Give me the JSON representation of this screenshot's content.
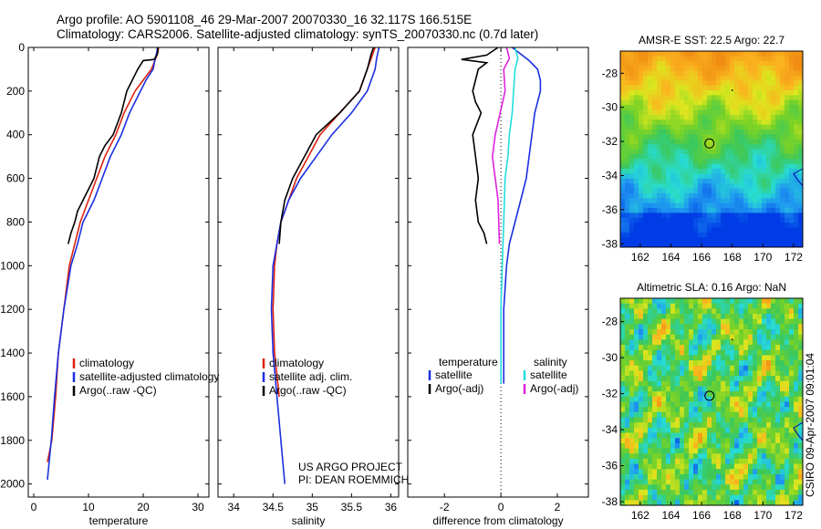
{
  "header": {
    "line1": "Argo profile: AO 5901108_46 29-Mar-2007 20070330_16 32.117S 166.515E",
    "line2": "Climatology: CARS2006. Satellite-adjusted climatology: synTS_20070330.nc (0.7d later)"
  },
  "side_text": "CSIRO 09-Apr-2007 09:01:04",
  "colors": {
    "red": "#dd2211",
    "blue": "#1a2fe0",
    "black": "#000000",
    "cyan": "#22dddd",
    "magenta": "#dd22dd"
  },
  "chart_data": [
    {
      "type": "line",
      "xlabel": "temperature",
      "xlim": [
        -1,
        32
      ],
      "ylim": [
        2060,
        0
      ],
      "xticks": [
        0,
        10,
        20,
        30
      ],
      "yticks": [
        0,
        200,
        400,
        600,
        800,
        1000,
        1200,
        1400,
        1600,
        1800,
        2000
      ],
      "legend": [
        "climatology",
        "satellite-adjusted climatology",
        "Argo(..raw -QC)"
      ],
      "series": [
        {
          "name": "climatology",
          "color": "red",
          "points": [
            [
              22.8,
              0
            ],
            [
              22.7,
              20
            ],
            [
              22.3,
              50
            ],
            [
              21.5,
              100
            ],
            [
              20,
              150
            ],
            [
              18.5,
              200
            ],
            [
              16.5,
              300
            ],
            [
              15,
              400
            ],
            [
              13,
              500
            ],
            [
              11.5,
              600
            ],
            [
              10,
              700
            ],
            [
              8.5,
              800
            ],
            [
              7.5,
              900
            ],
            [
              6.5,
              1000
            ],
            [
              5.5,
              1200
            ],
            [
              4.5,
              1400
            ],
            [
              4,
              1600
            ],
            [
              3.3,
              1800
            ],
            [
              2.5,
              1900
            ]
          ]
        },
        {
          "name": "satellite-adjusted climatology",
          "color": "blue",
          "points": [
            [
              22.6,
              0
            ],
            [
              22.5,
              20
            ],
            [
              22.2,
              50
            ],
            [
              21.8,
              100
            ],
            [
              20.5,
              150
            ],
            [
              19.5,
              200
            ],
            [
              17.5,
              300
            ],
            [
              16,
              400
            ],
            [
              14,
              500
            ],
            [
              12.5,
              600
            ],
            [
              11,
              700
            ],
            [
              9,
              800
            ],
            [
              8,
              900
            ],
            [
              6.8,
              1000
            ],
            [
              5.5,
              1200
            ],
            [
              4.5,
              1400
            ],
            [
              3.8,
              1600
            ],
            [
              3.2,
              1800
            ],
            [
              2.5,
              1980
            ]
          ]
        },
        {
          "name": "Argo(..raw -QC)",
          "color": "black",
          "points": [
            [
              22.7,
              0
            ],
            [
              22.6,
              30
            ],
            [
              22,
              55
            ],
            [
              20,
              60
            ],
            [
              19,
              100
            ],
            [
              18,
              150
            ],
            [
              17,
              200
            ],
            [
              16,
              300
            ],
            [
              14.5,
              400
            ],
            [
              13,
              450
            ],
            [
              12,
              500
            ],
            [
              11,
              600
            ],
            [
              10,
              650
            ],
            [
              9,
              700
            ],
            [
              8,
              750
            ],
            [
              7.5,
              800
            ],
            [
              6.8,
              850
            ],
            [
              6.5,
              880
            ],
            [
              6.3,
              900
            ]
          ]
        }
      ]
    },
    {
      "type": "line",
      "xlabel": "salinity",
      "xlim": [
        33.8,
        36.1
      ],
      "ylim": [
        2060,
        0
      ],
      "xticks": [
        34,
        34.5,
        35,
        35.5,
        36
      ],
      "legend": [
        "climatology",
        "satellite adj. clim.",
        "Argo(..raw -QC)"
      ],
      "annotations": [
        "US ARGO PROJECT",
        "PI: DEAN ROEMMICH"
      ],
      "series": [
        {
          "name": "climatology",
          "color": "red",
          "points": [
            [
              35.8,
              0
            ],
            [
              35.75,
              50
            ],
            [
              35.7,
              100
            ],
            [
              35.6,
              200
            ],
            [
              35.35,
              300
            ],
            [
              35.1,
              400
            ],
            [
              34.95,
              500
            ],
            [
              34.8,
              600
            ],
            [
              34.7,
              700
            ],
            [
              34.6,
              800
            ],
            [
              34.55,
              900
            ],
            [
              34.52,
              1000
            ],
            [
              34.5,
              1200
            ],
            [
              34.52,
              1400
            ],
            [
              34.58,
              1600
            ]
          ]
        },
        {
          "name": "satellite adj. clim.",
          "color": "blue",
          "points": [
            [
              35.85,
              0
            ],
            [
              35.82,
              50
            ],
            [
              35.8,
              100
            ],
            [
              35.7,
              200
            ],
            [
              35.5,
              300
            ],
            [
              35.25,
              400
            ],
            [
              35.05,
              500
            ],
            [
              34.85,
              600
            ],
            [
              34.7,
              700
            ],
            [
              34.6,
              800
            ],
            [
              34.55,
              900
            ],
            [
              34.5,
              1000
            ],
            [
              34.48,
              1200
            ],
            [
              34.5,
              1400
            ],
            [
              34.55,
              1600
            ],
            [
              34.6,
              1800
            ],
            [
              34.65,
              2000
            ]
          ]
        },
        {
          "name": "Argo(..raw -QC)",
          "color": "black",
          "points": [
            [
              35.78,
              0
            ],
            [
              35.75,
              30
            ],
            [
              35.7,
              100
            ],
            [
              35.6,
              200
            ],
            [
              35.35,
              300
            ],
            [
              35.05,
              400
            ],
            [
              34.9,
              500
            ],
            [
              34.75,
              600
            ],
            [
              34.65,
              700
            ],
            [
              34.6,
              800
            ],
            [
              34.58,
              900
            ]
          ]
        }
      ]
    },
    {
      "type": "line",
      "xlabel": "difference from climatology",
      "xlim": [
        -3.3,
        3.1
      ],
      "ylim": [
        2060,
        0
      ],
      "xticks": [
        -2,
        0,
        2
      ],
      "legend_left_title": "temperature",
      "legend_left": [
        "satellite",
        "Argo(-adj)"
      ],
      "legend_right_title": "salinity",
      "legend_right": [
        "satellite",
        "Argo(-adj)"
      ],
      "series": [
        {
          "name": "satellite",
          "color": "blue",
          "points": [
            [
              0.4,
              0
            ],
            [
              0.7,
              30
            ],
            [
              1.0,
              60
            ],
            [
              1.3,
              100
            ],
            [
              1.4,
              150
            ],
            [
              1.4,
              200
            ],
            [
              1.2,
              300
            ],
            [
              1.1,
              400
            ],
            [
              1.0,
              500
            ],
            [
              0.9,
              600
            ],
            [
              0.7,
              700
            ],
            [
              0.5,
              800
            ],
            [
              0.3,
              900
            ],
            [
              0.2,
              1000
            ],
            [
              0.1,
              1200
            ],
            [
              0.1,
              1400
            ],
            [
              0.1,
              1540
            ]
          ]
        },
        {
          "name": "Argo(-adj)",
          "color": "black",
          "points": [
            [
              -0.1,
              0
            ],
            [
              -0.5,
              35
            ],
            [
              -1.4,
              55
            ],
            [
              -0.5,
              70
            ],
            [
              -0.8,
              100
            ],
            [
              -1.0,
              200
            ],
            [
              -0.9,
              250
            ],
            [
              -0.7,
              300
            ],
            [
              -1.0,
              400
            ],
            [
              -0.9,
              500
            ],
            [
              -0.8,
              600
            ],
            [
              -0.9,
              700
            ],
            [
              -0.8,
              800
            ],
            [
              -0.6,
              850
            ],
            [
              -0.5,
              900
            ]
          ]
        },
        {
          "name": "satellite",
          "color": "cyan",
          "points": [
            [
              0.5,
              0
            ],
            [
              0.6,
              50
            ],
            [
              0.5,
              100
            ],
            [
              0.45,
              200
            ],
            [
              0.4,
              300
            ],
            [
              0.3,
              400
            ],
            [
              0.25,
              500
            ],
            [
              0.15,
              600
            ],
            [
              0.1,
              800
            ],
            [
              0.05,
              1000
            ],
            [
              0.0,
              1200
            ],
            [
              0.0,
              1540
            ]
          ]
        },
        {
          "name": "Argo(-adj)",
          "color": "magenta",
          "points": [
            [
              0.2,
              0
            ],
            [
              0.3,
              50
            ],
            [
              0.1,
              100
            ],
            [
              0.15,
              200
            ],
            [
              -0.2,
              400
            ],
            [
              -0.3,
              500
            ],
            [
              -0.2,
              600
            ],
            [
              -0.1,
              700
            ],
            [
              -0.05,
              900
            ]
          ]
        }
      ]
    },
    {
      "type": "heatmap",
      "title": "AMSR-E SST: 22.5 Argo: 22.7",
      "xlim": [
        160.7,
        172.6
      ],
      "ylim": [
        -38.2,
        -26.7
      ],
      "xticks": [
        162,
        164,
        166,
        168,
        170,
        172
      ],
      "yticks": [
        -28,
        -30,
        -32,
        -34,
        -36,
        -38
      ],
      "marker": [
        166.515,
        -32.117
      ]
    },
    {
      "type": "heatmap",
      "title": "Altimetric SLA: 0.16 Argo: NaN",
      "xlim": [
        160.7,
        172.6
      ],
      "ylim": [
        -38.2,
        -26.7
      ],
      "xticks": [
        162,
        164,
        166,
        168,
        170,
        172
      ],
      "yticks": [
        -28,
        -30,
        -32,
        -34,
        -36,
        -38
      ],
      "marker": [
        166.515,
        -32.117
      ]
    }
  ]
}
